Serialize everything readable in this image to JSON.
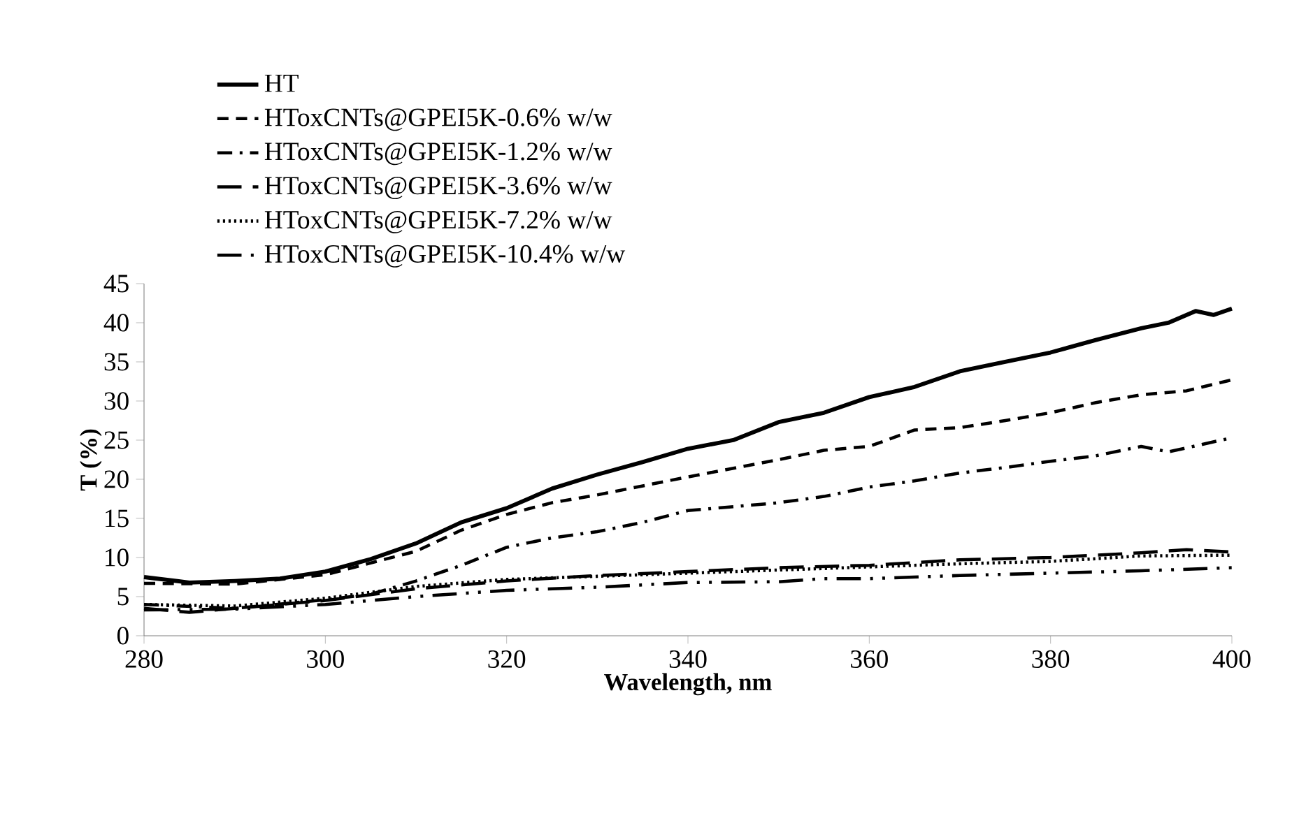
{
  "chart_data": {
    "type": "line",
    "xlabel": "Wavelength, nm",
    "ylabel": "T (%)",
    "xlim": [
      280,
      400
    ],
    "ylim": [
      0,
      45
    ],
    "xticks": [
      280,
      300,
      320,
      340,
      360,
      380,
      400
    ],
    "yticks": [
      0,
      5,
      10,
      15,
      20,
      25,
      30,
      35,
      40,
      45
    ],
    "legend": "top left",
    "series": [
      {
        "name": "HT",
        "color": "#000000",
        "line_style": "solid",
        "x": [
          280,
          285,
          290,
          295,
          300,
          305,
          310,
          315,
          320,
          325,
          330,
          335,
          340,
          345,
          350,
          355,
          360,
          365,
          370,
          375,
          380,
          385,
          390,
          393,
          396,
          398,
          400
        ],
        "values": [
          7.5,
          6.8,
          7.0,
          7.3,
          8.2,
          9.8,
          11.8,
          14.5,
          16.3,
          18.8,
          20.6,
          22.2,
          23.9,
          25.0,
          27.3,
          28.5,
          30.5,
          31.8,
          33.8,
          35.0,
          36.2,
          37.8,
          39.3,
          40.0,
          41.5,
          41.0,
          41.8
        ]
      },
      {
        "name": "HToxCNTs@GPEI5K-0.6% w/w",
        "color": "#000000",
        "line_style": "dashed",
        "x": [
          280,
          290,
          300,
          310,
          315,
          320,
          325,
          330,
          340,
          350,
          355,
          360,
          365,
          370,
          375,
          380,
          385,
          390,
          395,
          400
        ],
        "values": [
          6.7,
          6.6,
          7.8,
          10.8,
          13.5,
          15.5,
          17.0,
          18.0,
          20.3,
          22.5,
          23.7,
          24.2,
          26.3,
          26.6,
          27.5,
          28.5,
          29.8,
          30.8,
          31.3,
          32.7
        ]
      },
      {
        "name": "HToxCNTs@GPEI5K-1.2% w/w",
        "color": "#000000",
        "line_style": "dashdot",
        "x": [
          280,
          290,
          300,
          305,
          310,
          315,
          320,
          325,
          330,
          335,
          340,
          345,
          350,
          355,
          360,
          365,
          370,
          375,
          380,
          385,
          390,
          393,
          400
        ],
        "values": [
          4.0,
          3.5,
          4.6,
          5.3,
          7.0,
          9.0,
          11.3,
          12.5,
          13.3,
          14.5,
          16.0,
          16.5,
          17.0,
          17.8,
          19.0,
          19.8,
          20.8,
          21.5,
          22.3,
          23.0,
          24.2,
          23.5,
          25.3
        ]
      },
      {
        "name": "HToxCNTs@GPEI5K-3.6% w/w",
        "color": "#000000",
        "line_style": "longdashed",
        "x": [
          280,
          285,
          290,
          300,
          310,
          320,
          330,
          340,
          350,
          360,
          370,
          380,
          390,
          395,
          400
        ],
        "values": [
          3.5,
          3.0,
          3.5,
          4.5,
          6.0,
          7.0,
          7.7,
          8.2,
          8.7,
          9.0,
          9.7,
          10.0,
          10.6,
          11.0,
          10.7
        ]
      },
      {
        "name": "HToxCNTs@GPEI5K-7.2% w/w",
        "color": "#000000",
        "line_style": "dotted",
        "x": [
          280,
          290,
          300,
          310,
          320,
          330,
          340,
          350,
          360,
          370,
          380,
          390,
          400
        ],
        "values": [
          4.0,
          3.8,
          4.8,
          6.3,
          7.2,
          7.6,
          8.0,
          8.4,
          8.8,
          9.2,
          9.5,
          10.2,
          10.3
        ]
      },
      {
        "name": "HToxCNTs@GPEI5K-10.4% w/w",
        "color": "#000000",
        "line_style": "dashdotdot",
        "x": [
          280,
          290,
          300,
          310,
          320,
          330,
          340,
          350,
          355,
          360,
          370,
          380,
          390,
          400
        ],
        "values": [
          3.3,
          3.4,
          4.0,
          5.0,
          5.8,
          6.2,
          6.8,
          6.9,
          7.3,
          7.3,
          7.7,
          8.0,
          8.3,
          8.7
        ]
      }
    ]
  }
}
